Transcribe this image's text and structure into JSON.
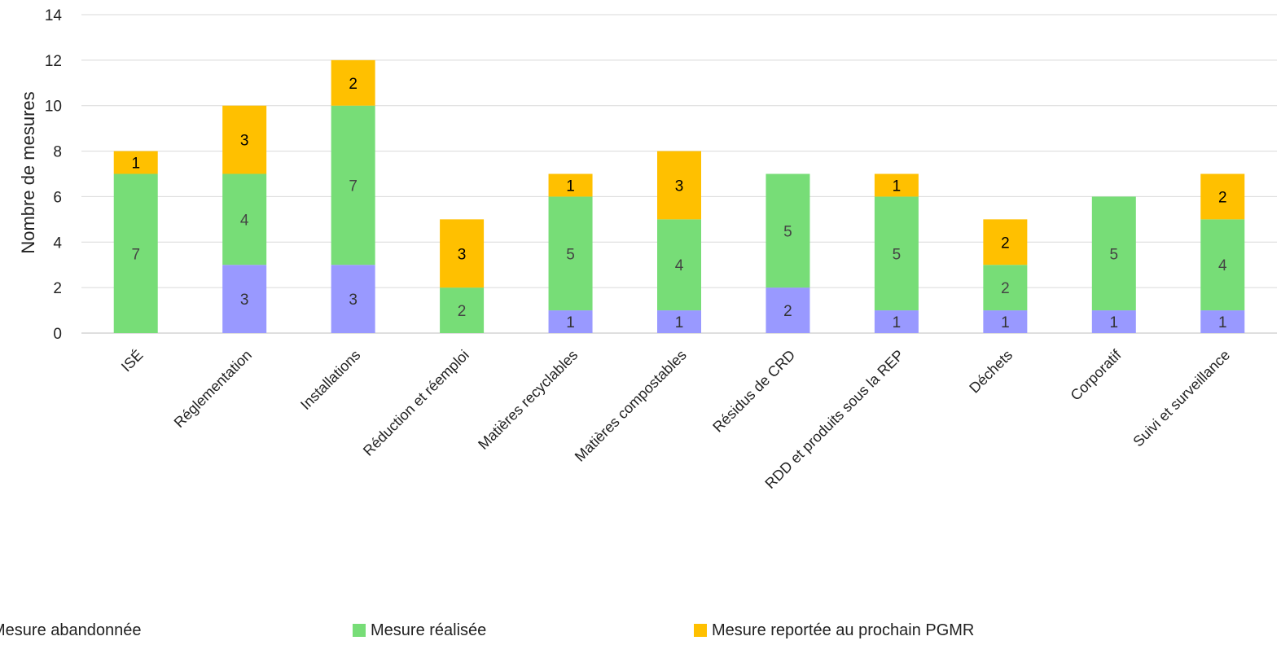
{
  "chart_data": {
    "type": "bar",
    "stacked": true,
    "title": "",
    "xlabel": "",
    "ylabel": "Nombre de mesures",
    "ylim": [
      0,
      14
    ],
    "yticks": [
      0,
      2,
      4,
      6,
      8,
      10,
      12,
      14
    ],
    "grid": true,
    "legend_position": "bottom",
    "categories": [
      "ISÉ",
      "Réglementation",
      "Installations",
      "Réduction et réemploi",
      "Matières recyclables",
      "Matières compostables",
      "Résidus de CRD",
      "RDD et produits sous la REP",
      "Déchets",
      "Corporatif",
      "Suivi et surveillance"
    ],
    "series": [
      {
        "name": "Mesure abandonnée",
        "color": "#9999ff",
        "values": [
          0,
          3,
          3,
          0,
          1,
          1,
          2,
          1,
          1,
          1,
          1
        ]
      },
      {
        "name": "Mesure réalisée",
        "color": "#77dd77",
        "values": [
          7,
          4,
          7,
          2,
          5,
          4,
          5,
          5,
          2,
          5,
          4
        ]
      },
      {
        "name": "Mesure reportée au prochain PGMR",
        "color": "#ffc000",
        "values": [
          1,
          3,
          2,
          3,
          1,
          3,
          0,
          1,
          2,
          0,
          2
        ]
      }
    ]
  }
}
